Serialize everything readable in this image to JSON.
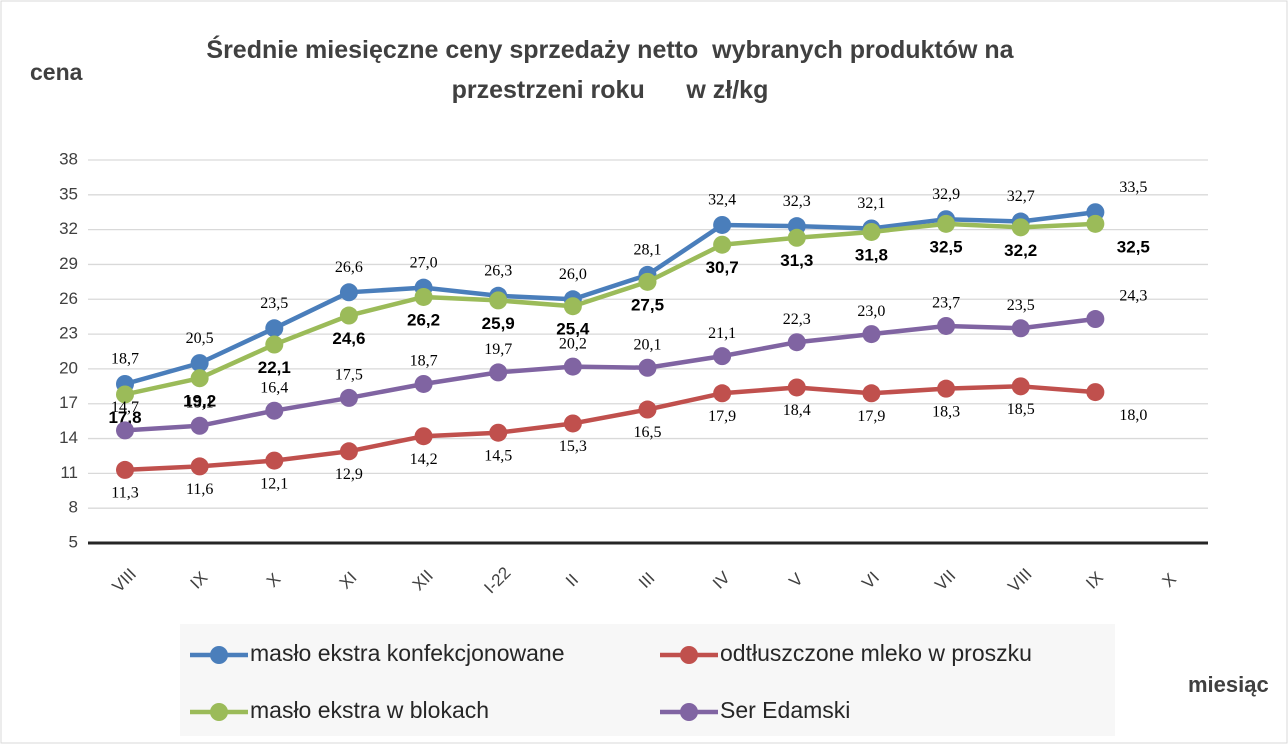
{
  "chart_data": {
    "type": "line",
    "title": "Średnie miesięczne ceny sprzedaży netto  wybranych produktów na przestrzeni roku      w zł/kg",
    "y_label": "cena",
    "x_label": "miesiąc",
    "categories": [
      "VIII",
      "IX",
      "X",
      "XI",
      "XII",
      "I-22",
      "II",
      "III",
      "IV",
      "V",
      "VI",
      "VII",
      "VIII",
      "IX",
      "X"
    ],
    "ylim": [
      5,
      38
    ],
    "yticks": [
      5,
      8,
      11,
      14,
      17,
      20,
      23,
      26,
      29,
      32,
      35,
      38
    ],
    "grid": true,
    "series": [
      {
        "name": "masło ekstra konfekcjonowane",
        "color": "#4a7ebb",
        "values": [
          18.7,
          20.5,
          23.5,
          26.6,
          27.0,
          26.3,
          26.0,
          28.1,
          32.4,
          32.3,
          32.1,
          32.9,
          32.7,
          33.5,
          null
        ],
        "value_labels": [
          "18,7",
          "20,5",
          "23,5",
          "26,6",
          "27,0",
          "26,3",
          "26,0",
          "28,1",
          "32,4",
          "32,3",
          "32,1",
          "32,9",
          "32,7",
          "33,5",
          null
        ]
      },
      {
        "name": "odtłuszczone mleko w proszku",
        "color": "#c0504d",
        "values": [
          11.3,
          11.6,
          12.1,
          12.9,
          14.2,
          14.5,
          15.3,
          16.5,
          17.9,
          18.4,
          17.9,
          18.3,
          18.5,
          18.0,
          null
        ],
        "value_labels": [
          "11,3",
          "11,6",
          "12,1",
          "12,9",
          "14,2",
          "14,5",
          "15,3",
          "16,5",
          "17,9",
          "18,4",
          "17,9",
          "18,3",
          "18,5",
          "18,0",
          null
        ]
      },
      {
        "name": "masło ekstra w blokach",
        "color": "#9bbb59",
        "values": [
          17.8,
          19.2,
          22.1,
          24.6,
          26.2,
          25.9,
          25.4,
          27.5,
          30.7,
          31.3,
          31.8,
          32.5,
          32.2,
          32.5,
          null
        ],
        "value_labels": [
          "17,8",
          "19,2",
          "22,1",
          "24,6",
          "26,2",
          "25,9",
          "25,4",
          "27,5",
          "30,7",
          "31,3",
          "31,8",
          "32,5",
          "32,2",
          "32,5",
          null
        ]
      },
      {
        "name": "Ser Edamski",
        "color": "#8064a2",
        "values": [
          14.7,
          15.1,
          16.4,
          17.5,
          18.7,
          19.7,
          20.2,
          20.1,
          21.1,
          22.3,
          23.0,
          23.7,
          23.5,
          24.3,
          null
        ],
        "value_labels": [
          "14,7",
          "15,1",
          "16,4",
          "17,5",
          "18,7",
          "19,7",
          "20,2",
          "20,1",
          "21,1",
          "22,3",
          "23,0",
          "23,7",
          "23,5",
          "24,3",
          null
        ]
      }
    ]
  }
}
